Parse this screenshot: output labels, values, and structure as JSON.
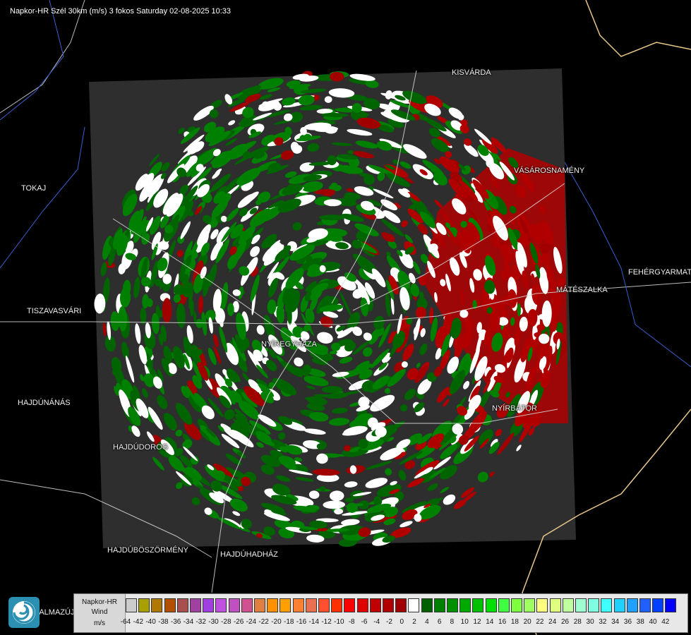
{
  "title": "Napkor-HR Szél 30km (m/s) 3 fokos Saturday 02-08-2025 10:33",
  "cities": [
    {
      "name": "KISVÁRDA"
    },
    {
      "name": "VÁSÁROSNAMÉNY"
    },
    {
      "name": "TOKAJ"
    },
    {
      "name": "FEHÉRGYARMAT"
    },
    {
      "name": "MÁTÉSZALKA"
    },
    {
      "name": "TISZAVASVÁRI"
    },
    {
      "name": "NYÍREGYHÁZA"
    },
    {
      "name": "HAJDÚNÁNÁS"
    },
    {
      "name": "NYÍRBÁTOR"
    },
    {
      "name": "HAJDÚDOROG"
    },
    {
      "name": "HAJDÚBÖSZÖRMÉNY"
    },
    {
      "name": "HAJDÚHADHÁZ"
    },
    {
      "name": "BALMAZÚJVÁROS"
    }
  ],
  "legend": {
    "line1": "Napkor-HR",
    "line2": "Wind",
    "line3": "m/s",
    "ticks": [
      "-64",
      "-42",
      "-40",
      "-38",
      "-36",
      "-34",
      "-32",
      "-30",
      "-28",
      "-26",
      "-24",
      "-22",
      "-20",
      "-18",
      "-16",
      "-14",
      "-12",
      "-10",
      "-8",
      "-6",
      "-4",
      "-2",
      "0",
      "2",
      "4",
      "6",
      "8",
      "10",
      "12",
      "14",
      "16",
      "18",
      "20",
      "22",
      "24",
      "26",
      "28",
      "30",
      "32",
      "34",
      "36",
      "38",
      "40",
      "42"
    ],
    "colors": [
      "#cccccc",
      "#a8a000",
      "#b07800",
      "#b05000",
      "#a85050",
      "#a040a0",
      "#a040e0",
      "#c050e0",
      "#c050c0",
      "#d05090",
      "#e08040",
      "#ff9000",
      "#ffa000",
      "#ff8030",
      "#e87050",
      "#ff5030",
      "#ff3000",
      "#ff0000",
      "#e00000",
      "#c00000",
      "#b00000",
      "#a00000",
      "#ffffff",
      "#006000",
      "#008000",
      "#009000",
      "#00a800",
      "#00c000",
      "#00e000",
      "#40ff40",
      "#80ff40",
      "#a0ff60",
      "#ffff80",
      "#e0ff80",
      "#c0ffa0",
      "#a0ffd0",
      "#80ffe0",
      "#40ffff",
      "#20d0ff",
      "#20a0ff",
      "#2060ff",
      "#0040ff",
      "#0000ff"
    ]
  }
}
